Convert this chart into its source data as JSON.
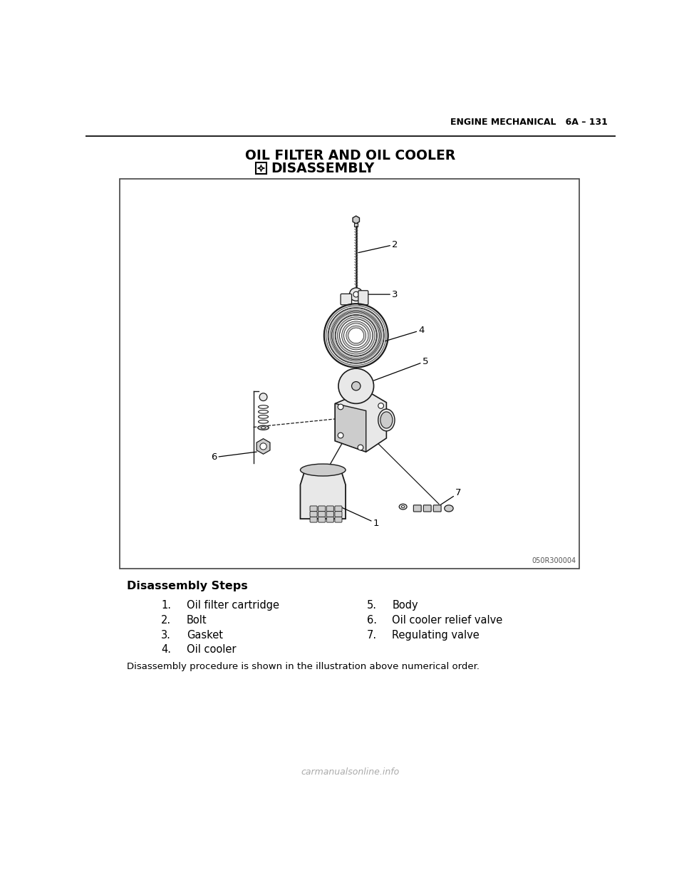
{
  "page_header_right": "ENGINE MECHANICAL   6A – 131",
  "title_line1": "OIL FILTER AND OIL COOLER",
  "title_line2_icon": "❖",
  "title_line2_text": "DISASSEMBLY",
  "image_ref": "050R300004",
  "section_title": "Disassembly Steps",
  "steps_left": [
    {
      "num": "1.",
      "text": "Oil filter cartridge"
    },
    {
      "num": "2.",
      "text": "Bolt"
    },
    {
      "num": "3.",
      "text": "Gasket"
    },
    {
      "num": "4.",
      "text": "Oil cooler"
    }
  ],
  "steps_right": [
    {
      "num": "5.",
      "text": "Body"
    },
    {
      "num": "6.",
      "text": "Oil cooler relief valve"
    },
    {
      "num": "7.",
      "text": "Regulating valve"
    }
  ],
  "footer_note": "Disassembly procedure is shown in the illustration above numerical order.",
  "watermark": "carmanualsonline.info",
  "bg_color": "#ffffff",
  "text_color": "#000000",
  "header_line_color": "#2a2a2a",
  "box_border_color": "#444444",
  "diagram_line_color": "#1a1a1a",
  "diagram_fill_light": "#e8e8e8",
  "diagram_fill_mid": "#cccccc",
  "diagram_fill_dark": "#aaaaaa"
}
